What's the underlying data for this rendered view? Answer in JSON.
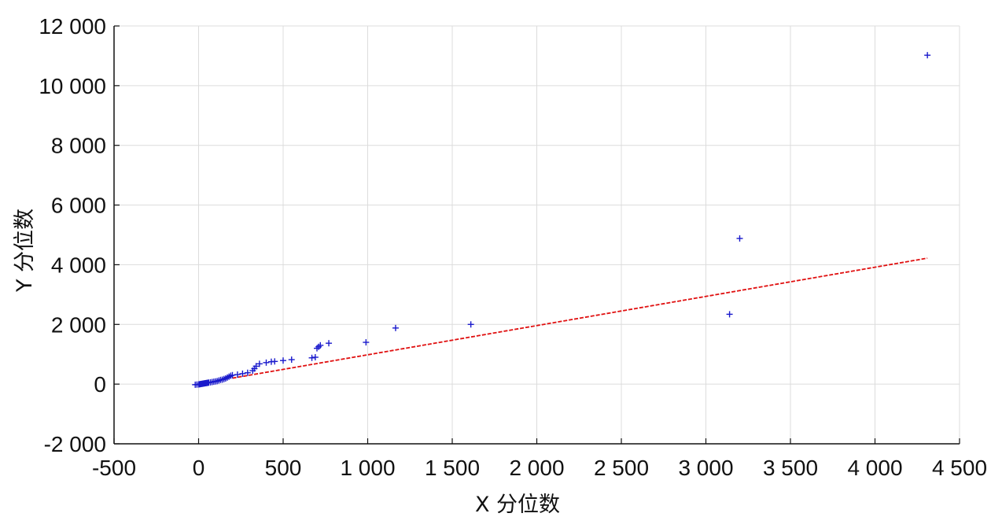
{
  "chart_data": {
    "type": "scatter",
    "xlabel": "X 分位数",
    "ylabel": "Y 分位数",
    "xlim": [
      -500,
      4500
    ],
    "ylim": [
      -2000,
      12000
    ],
    "xticks": [
      -500,
      0,
      500,
      1000,
      1500,
      2000,
      2500,
      3000,
      3500,
      4000,
      4500
    ],
    "yticks": [
      -2000,
      0,
      2000,
      4000,
      6000,
      8000,
      10000,
      12000
    ],
    "xtick_labels": [
      "-500",
      "0",
      "500",
      "1 000",
      "1 500",
      "2 000",
      "2 500",
      "3 000",
      "3 500",
      "4 000",
      "4 500"
    ],
    "ytick_labels": [
      "-2 000",
      "0",
      "2 000",
      "4 000",
      "6 000",
      "8 000",
      "10 000",
      "12 000"
    ],
    "grid": true,
    "marker": "+",
    "series": [
      {
        "points": [
          [
            -20,
            -20
          ],
          [
            -10,
            -15
          ],
          [
            0,
            -10
          ],
          [
            5,
            -5
          ],
          [
            10,
            0
          ],
          [
            15,
            5
          ],
          [
            20,
            10
          ],
          [
            25,
            15
          ],
          [
            30,
            20
          ],
          [
            35,
            25
          ],
          [
            40,
            30
          ],
          [
            45,
            35
          ],
          [
            50,
            40
          ],
          [
            55,
            45
          ],
          [
            60,
            50
          ],
          [
            70,
            60
          ],
          [
            80,
            70
          ],
          [
            90,
            80
          ],
          [
            100,
            90
          ],
          [
            110,
            100
          ],
          [
            120,
            120
          ],
          [
            130,
            140
          ],
          [
            140,
            150
          ],
          [
            150,
            170
          ],
          [
            160,
            190
          ],
          [
            170,
            220
          ],
          [
            180,
            250
          ],
          [
            190,
            280
          ],
          [
            200,
            300
          ],
          [
            230,
            320
          ],
          [
            260,
            350
          ],
          [
            290,
            380
          ],
          [
            320,
            450
          ],
          [
            330,
            520
          ],
          [
            340,
            600
          ],
          [
            360,
            680
          ],
          [
            400,
            720
          ],
          [
            430,
            750
          ],
          [
            450,
            760
          ],
          [
            500,
            790
          ],
          [
            550,
            820
          ],
          [
            670,
            880
          ],
          [
            690,
            900
          ],
          [
            700,
            1200
          ],
          [
            710,
            1250
          ],
          [
            720,
            1300
          ],
          [
            770,
            1370
          ],
          [
            990,
            1400
          ],
          [
            1165,
            1880
          ],
          [
            1610,
            2000
          ],
          [
            3140,
            2340
          ],
          [
            3200,
            4880
          ],
          [
            4310,
            11020
          ]
        ]
      }
    ],
    "reference_line": {
      "x": [
        200,
        4310
      ],
      "y": [
        200,
        4220
      ]
    },
    "colors": {
      "points": "#1a1acc",
      "reference_line": "#e01010",
      "grid": "#dcdcdc",
      "axis": "#111111"
    }
  }
}
